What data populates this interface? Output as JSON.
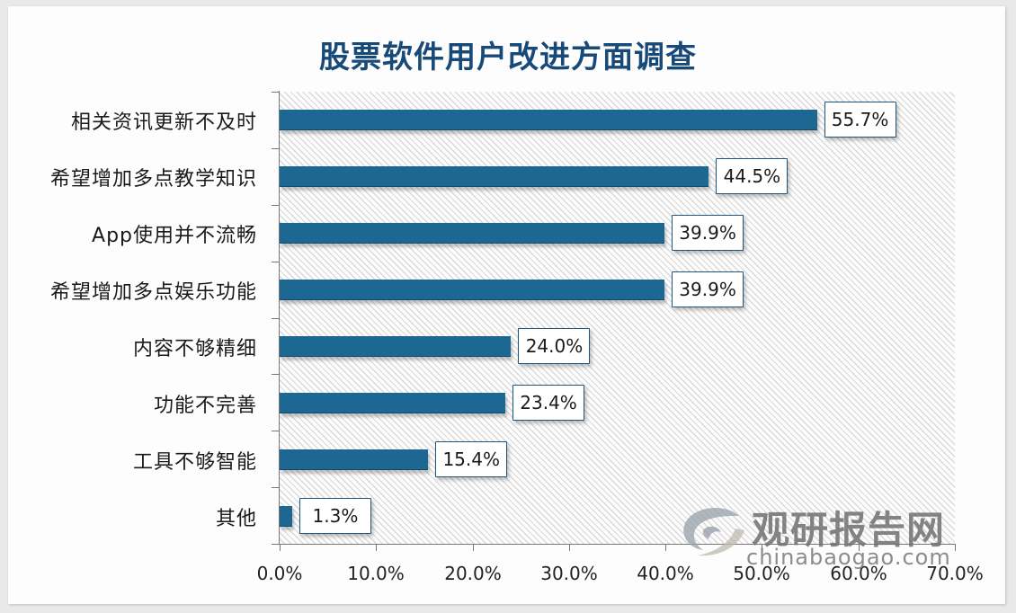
{
  "chart_data": {
    "type": "bar",
    "orientation": "horizontal",
    "title": "股票软件用户改进方面调查",
    "categories": [
      "相关资讯更新不及时",
      "希望增加多点教学知识",
      "App使用并不流畅",
      "希望增加多点娱乐功能",
      "内容不够精细",
      "功能不完善",
      "工具不够智能",
      "其他"
    ],
    "values": [
      55.7,
      44.5,
      39.9,
      39.9,
      24.0,
      23.4,
      15.4,
      1.3
    ],
    "value_labels": [
      "55.7%",
      "44.5%",
      "39.9%",
      "39.9%",
      "24.0%",
      "23.4%",
      "15.4%",
      "1.3%"
    ],
    "xlabel": "",
    "ylabel": "",
    "xlim": [
      0,
      70
    ],
    "xticks": [
      "0.0%",
      "10.0%",
      "20.0%",
      "30.0%",
      "40.0%",
      "50.0%",
      "60.0%",
      "70.0%"
    ],
    "grid": false,
    "legend": null,
    "bar_color": "#1d6793"
  },
  "watermark": {
    "cn": "观研报告网",
    "en": "chinabaogao.com"
  }
}
